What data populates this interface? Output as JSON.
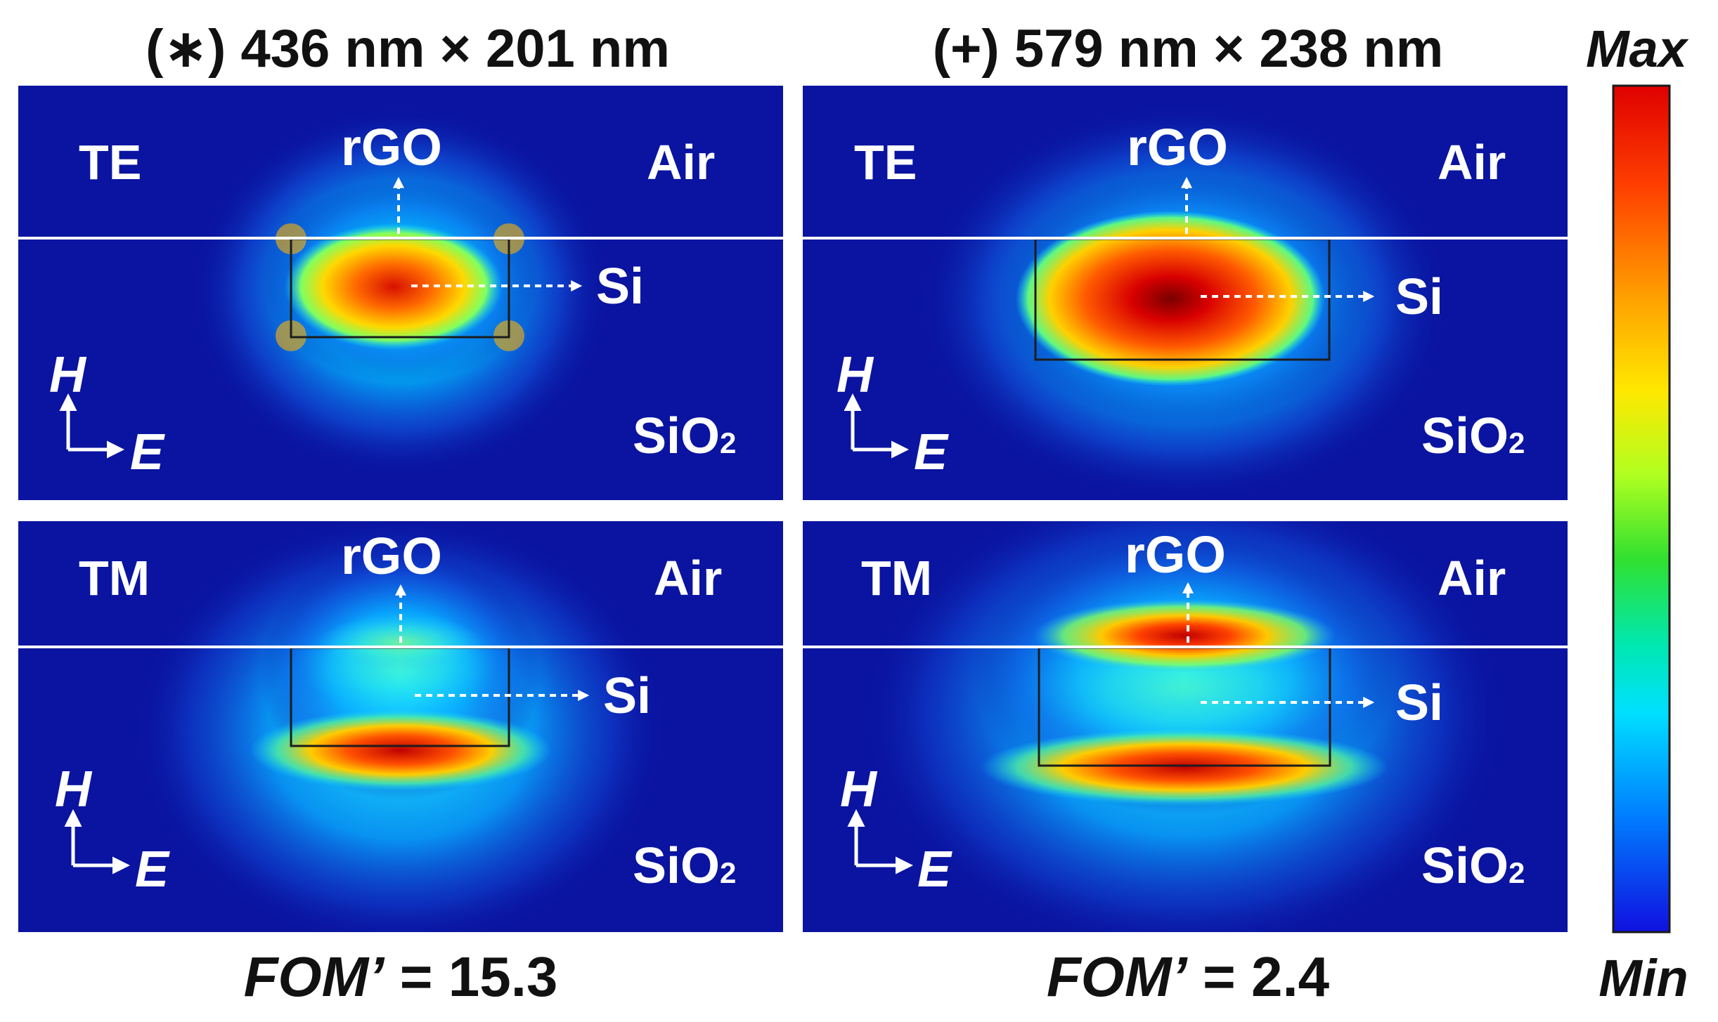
{
  "columns": [
    {
      "title": "(∗) 436 nm × 201 nm",
      "fom_label": "FOM’",
      "fom_value": "= 15.3"
    },
    {
      "title": "(+) 579 nm × 238 nm",
      "fom_label": "FOM’",
      "fom_value": "= 2.4"
    }
  ],
  "panel_text": {
    "mode_te": "TE",
    "mode_tm": "TM",
    "rgo": "rGO",
    "air": "Air",
    "si": "Si",
    "sio2": "SiO",
    "sio2_sub": "2",
    "axis_h": "H",
    "axis_e": "E"
  },
  "colorbar": {
    "max_label": "Max",
    "min_label": "Min"
  },
  "colors": {
    "background_field": "#0a14a0",
    "field_high": "#b80000",
    "field_mid": "#ffe000",
    "field_low": "#00e0ff",
    "interface_line": "#ffffff",
    "waveguide_outline": "#1c1c1c"
  }
}
